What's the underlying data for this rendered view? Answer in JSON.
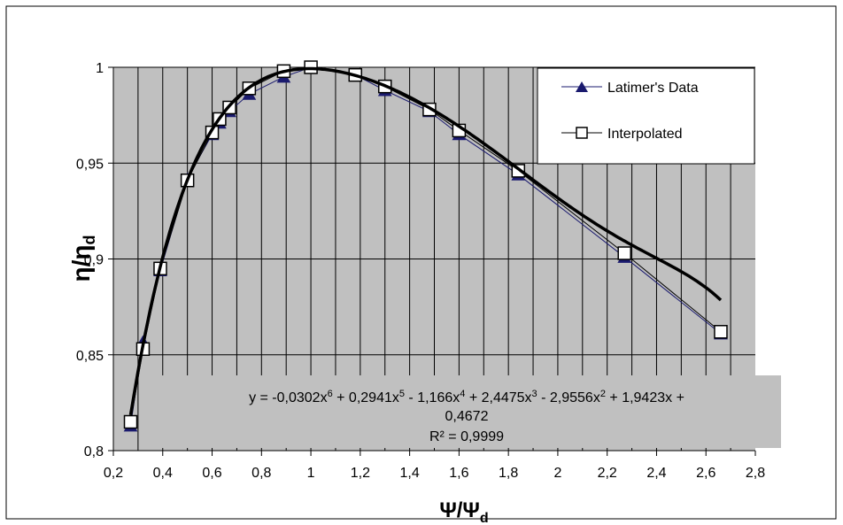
{
  "chart_data": {
    "type": "line",
    "title": "",
    "xlabel": {
      "main": "Ψ/Ψ",
      "sub": "d"
    },
    "ylabel": {
      "main": "η/η",
      "sub": "d"
    },
    "xlim": [
      0.2,
      2.8
    ],
    "ylim": [
      0.8,
      1.0
    ],
    "x_ticks": [
      0.2,
      0.4,
      0.6,
      0.8,
      1.0,
      1.2,
      1.4,
      1.6,
      1.8,
      2.0,
      2.2,
      2.4,
      2.6,
      2.8
    ],
    "x_tick_labels": [
      "0,2",
      "0,4",
      "0,6",
      "0,8",
      "1",
      "1,2",
      "1,4",
      "1,6",
      "1,8",
      "2",
      "2,2",
      "2,4",
      "2,6",
      "2,8"
    ],
    "x_minor_grid_step": 0.1,
    "y_ticks": [
      0.8,
      0.85,
      0.9,
      0.95,
      1.0
    ],
    "y_tick_labels": [
      "0,8",
      "0,85",
      "0,9",
      "0,95",
      "1"
    ],
    "grid": true,
    "plot_background": "#c0c0c0",
    "legend_position": "top-right",
    "series": [
      {
        "name": "Latimer's Data",
        "marker": "triangle",
        "color": "#1a1a6e",
        "x": [
          0.27,
          0.32,
          0.39,
          0.5,
          0.6,
          0.63,
          0.67,
          0.75,
          0.89,
          1.0,
          1.18,
          1.3,
          1.48,
          1.6,
          1.84,
          2.27,
          2.66
        ],
        "y": [
          0.813,
          0.857,
          0.894,
          0.942,
          0.965,
          0.971,
          0.977,
          0.986,
          0.995,
          1.0,
          0.996,
          0.988,
          0.977,
          0.965,
          0.944,
          0.901,
          0.861
        ]
      },
      {
        "name": "Interpolated",
        "marker": "square",
        "color": "#000000",
        "x": [
          0.27,
          0.32,
          0.39,
          0.5,
          0.6,
          0.63,
          0.67,
          0.75,
          0.89,
          1.0,
          1.18,
          1.3,
          1.48,
          1.6,
          1.84,
          2.27,
          2.66
        ],
        "y": [
          0.815,
          0.853,
          0.895,
          0.941,
          0.966,
          0.973,
          0.979,
          0.989,
          0.998,
          1.0,
          0.996,
          0.99,
          0.978,
          0.967,
          0.946,
          0.903,
          0.862
        ]
      }
    ],
    "trendline": {
      "type": "polynomial",
      "coefficients_high_to_low": [
        -0.0302,
        0.2941,
        -1.166,
        2.4475,
        -2.9556,
        1.9423,
        0.4672
      ],
      "x_range": [
        0.27,
        2.66
      ]
    },
    "equation_lines": [
      [
        {
          "t": "y = -0,0302x"
        },
        {
          "t": "6",
          "sup": true
        },
        {
          "t": " + 0,2941x"
        },
        {
          "t": "5",
          "sup": true
        },
        {
          "t": " - 1,166x"
        },
        {
          "t": "4",
          "sup": true
        },
        {
          "t": " + 2,4475x"
        },
        {
          "t": "3",
          "sup": true
        },
        {
          "t": " - 2,9556x"
        },
        {
          "t": "2",
          "sup": true
        },
        {
          "t": " + 1,9423x +"
        }
      ],
      [
        {
          "t": "0,4672"
        }
      ],
      [
        {
          "t": "R² = 0,9999"
        }
      ]
    ]
  }
}
